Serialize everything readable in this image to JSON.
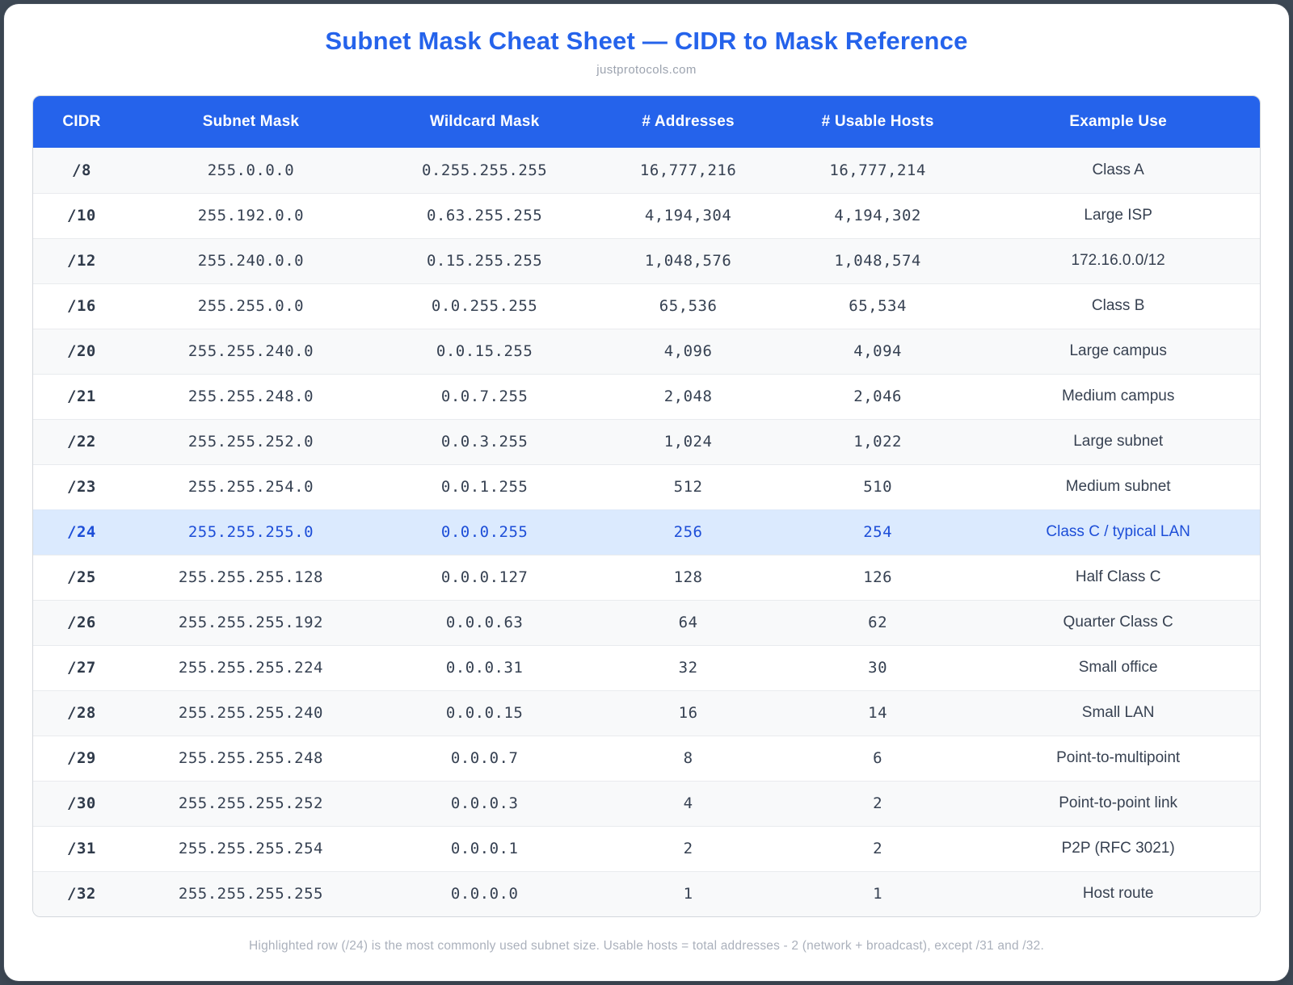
{
  "page": {
    "title": "Subnet Mask Cheat Sheet — CIDR to Mask Reference",
    "subtitle": "justprotocols.com",
    "footnote": "Highlighted row (/24) is the most commonly used subnet size. Usable hosts = total addresses - 2 (network + broadcast), except /31 and /32."
  },
  "colors": {
    "accent_blue": "#2563eb",
    "title_blue": "#2563eb",
    "highlight_row_bg": "#dbeafe",
    "highlight_row_text": "#1d4ed8",
    "stripe_row_bg": "#f8f9fa"
  },
  "table": {
    "columns": [
      "CIDR",
      "Subnet Mask",
      "Wildcard Mask",
      "# Addresses",
      "# Usable Hosts",
      "Example Use"
    ],
    "rows": [
      {
        "cidr": "/8",
        "mask": "255.0.0.0",
        "wildcard": "0.255.255.255",
        "addresses": "16,777,216",
        "hosts": "16,777,214",
        "example": "Class A",
        "highlight": false
      },
      {
        "cidr": "/10",
        "mask": "255.192.0.0",
        "wildcard": "0.63.255.255",
        "addresses": "4,194,304",
        "hosts": "4,194,302",
        "example": "Large ISP",
        "highlight": false
      },
      {
        "cidr": "/12",
        "mask": "255.240.0.0",
        "wildcard": "0.15.255.255",
        "addresses": "1,048,576",
        "hosts": "1,048,574",
        "example": "172.16.0.0/12",
        "highlight": false
      },
      {
        "cidr": "/16",
        "mask": "255.255.0.0",
        "wildcard": "0.0.255.255",
        "addresses": "65,536",
        "hosts": "65,534",
        "example": "Class B",
        "highlight": false
      },
      {
        "cidr": "/20",
        "mask": "255.255.240.0",
        "wildcard": "0.0.15.255",
        "addresses": "4,096",
        "hosts": "4,094",
        "example": "Large campus",
        "highlight": false
      },
      {
        "cidr": "/21",
        "mask": "255.255.248.0",
        "wildcard": "0.0.7.255",
        "addresses": "2,048",
        "hosts": "2,046",
        "example": "Medium campus",
        "highlight": false
      },
      {
        "cidr": "/22",
        "mask": "255.255.252.0",
        "wildcard": "0.0.3.255",
        "addresses": "1,024",
        "hosts": "1,022",
        "example": "Large subnet",
        "highlight": false
      },
      {
        "cidr": "/23",
        "mask": "255.255.254.0",
        "wildcard": "0.0.1.255",
        "addresses": "512",
        "hosts": "510",
        "example": "Medium subnet",
        "highlight": false
      },
      {
        "cidr": "/24",
        "mask": "255.255.255.0",
        "wildcard": "0.0.0.255",
        "addresses": "256",
        "hosts": "254",
        "example": "Class C / typical LAN",
        "highlight": true
      },
      {
        "cidr": "/25",
        "mask": "255.255.255.128",
        "wildcard": "0.0.0.127",
        "addresses": "128",
        "hosts": "126",
        "example": "Half Class C",
        "highlight": false
      },
      {
        "cidr": "/26",
        "mask": "255.255.255.192",
        "wildcard": "0.0.0.63",
        "addresses": "64",
        "hosts": "62",
        "example": "Quarter Class C",
        "highlight": false
      },
      {
        "cidr": "/27",
        "mask": "255.255.255.224",
        "wildcard": "0.0.0.31",
        "addresses": "32",
        "hosts": "30",
        "example": "Small office",
        "highlight": false
      },
      {
        "cidr": "/28",
        "mask": "255.255.255.240",
        "wildcard": "0.0.0.15",
        "addresses": "16",
        "hosts": "14",
        "example": "Small LAN",
        "highlight": false
      },
      {
        "cidr": "/29",
        "mask": "255.255.255.248",
        "wildcard": "0.0.0.7",
        "addresses": "8",
        "hosts": "6",
        "example": "Point-to-multipoint",
        "highlight": false
      },
      {
        "cidr": "/30",
        "mask": "255.255.255.252",
        "wildcard": "0.0.0.3",
        "addresses": "4",
        "hosts": "2",
        "example": "Point-to-point link",
        "highlight": false
      },
      {
        "cidr": "/31",
        "mask": "255.255.255.254",
        "wildcard": "0.0.0.1",
        "addresses": "2",
        "hosts": "2",
        "example": "P2P (RFC 3021)",
        "highlight": false
      },
      {
        "cidr": "/32",
        "mask": "255.255.255.255",
        "wildcard": "0.0.0.0",
        "addresses": "1",
        "hosts": "1",
        "example": "Host route",
        "highlight": false
      }
    ]
  }
}
